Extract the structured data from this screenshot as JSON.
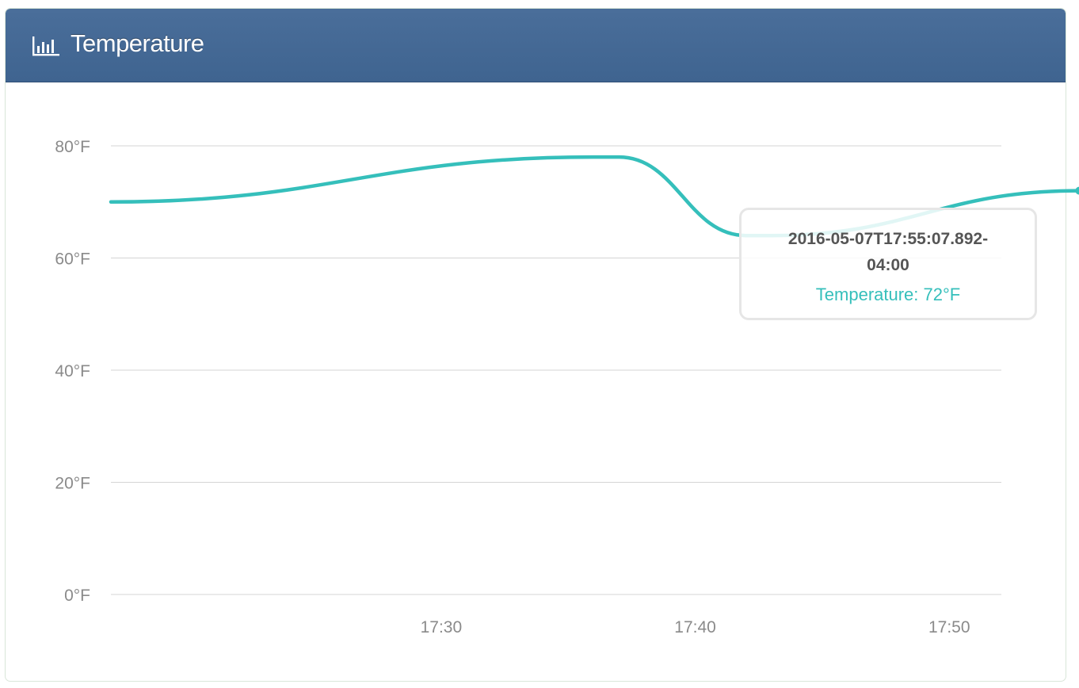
{
  "panel": {
    "title": "Temperature",
    "icon": "bar-chart-icon"
  },
  "colors": {
    "header": "#446b96",
    "series": "#35bfbb",
    "grid": "#d5d5d5",
    "tick_text": "#8a8a8a"
  },
  "tooltip": {
    "time": "2016-05-07T17:55:07.892-04:00",
    "label": "Temperature: 72°F"
  },
  "chart_data": {
    "type": "line",
    "title": "Temperature",
    "grid": true,
    "ylim": [
      0,
      80
    ],
    "y_ticks": [
      0,
      20,
      40,
      60,
      80
    ],
    "y_tick_labels": [
      "0°F",
      "20°F",
      "40°F",
      "60°F",
      "80°F"
    ],
    "xlim_minutes": [
      17.0,
      52.05
    ],
    "x_ticks": [
      "17:30",
      "17:40",
      "17:50"
    ],
    "series": [
      {
        "color": "#35bfbb",
        "points": [
          {
            "t": "17:17:00",
            "value": 70
          },
          {
            "t": "17:36:00",
            "value": 78
          },
          {
            "t": "17:37:00",
            "value": 78
          },
          {
            "t": "17:42:00",
            "value": 64
          },
          {
            "t": "17:43:00",
            "value": 64
          },
          {
            "t": "17:55:07",
            "value": 72
          }
        ]
      }
    ]
  }
}
